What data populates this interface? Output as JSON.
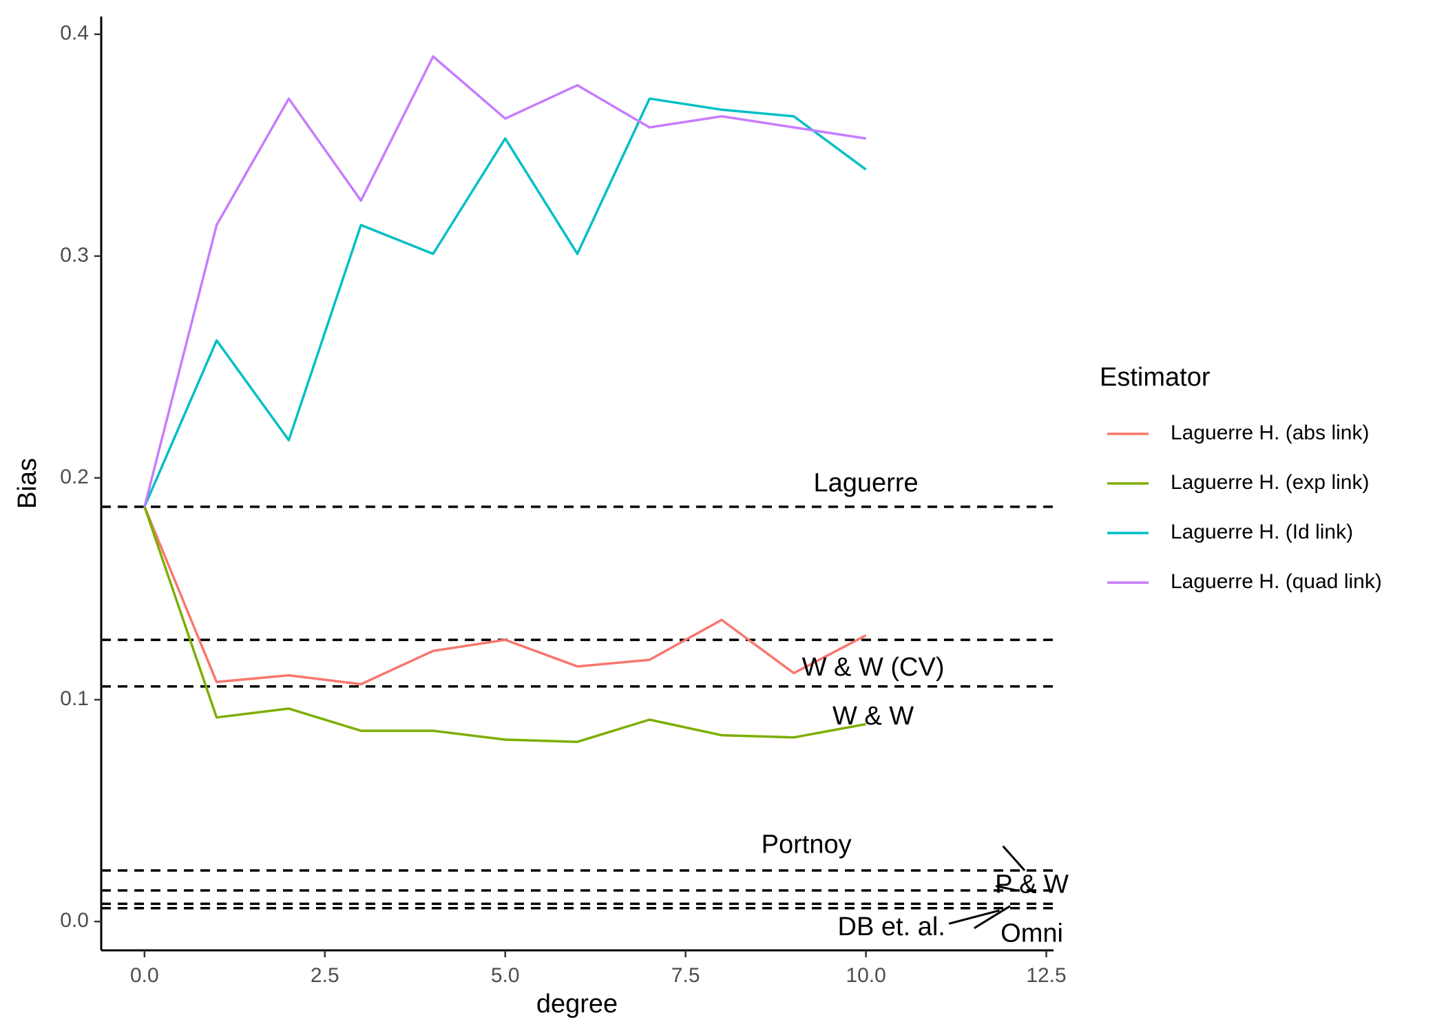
{
  "chart_data": {
    "type": "line",
    "xlabel": "degree",
    "ylabel": "Bias",
    "xlim": [
      -0.6,
      12.6
    ],
    "ylim": [
      -0.013,
      0.408
    ],
    "x_ticks": [
      0.0,
      2.5,
      5.0,
      7.5,
      10.0,
      12.5
    ],
    "x_tick_labels": [
      "0.0",
      "2.5",
      "5.0",
      "7.5",
      "10.0",
      "12.5"
    ],
    "y_ticks": [
      0.0,
      0.1,
      0.2,
      0.3,
      0.4
    ],
    "y_tick_labels": [
      "0.0",
      "0.1",
      "0.2",
      "0.3",
      "0.4"
    ],
    "grid": false,
    "legend": {
      "title": "Estimator",
      "placement": "right"
    },
    "x": [
      0,
      1,
      2,
      3,
      4,
      5,
      6,
      7,
      8,
      9,
      10
    ],
    "series": [
      {
        "name": "Laguerre H. (abs link)",
        "color": "#F8766D",
        "values": [
          0.187,
          0.108,
          0.111,
          0.107,
          0.122,
          0.127,
          0.115,
          0.118,
          0.136,
          0.112,
          0.129
        ]
      },
      {
        "name": "Laguerre H. (exp link)",
        "color": "#7CAE00",
        "values": [
          0.187,
          0.092,
          0.096,
          0.086,
          0.086,
          0.082,
          0.081,
          0.091,
          0.084,
          0.083,
          0.089
        ]
      },
      {
        "name": "Laguerre H. (Id link)",
        "color": "#00BFC4",
        "values": [
          0.187,
          0.262,
          0.217,
          0.314,
          0.301,
          0.353,
          0.301,
          0.371,
          0.366,
          0.363,
          0.339
        ]
      },
      {
        "name": "Laguerre H. (quad link)",
        "color": "#C77CFF",
        "values": [
          0.187,
          0.314,
          0.371,
          0.325,
          0.39,
          0.362,
          0.377,
          0.358,
          0.363,
          0.358,
          0.353
        ]
      }
    ],
    "reference_lines": [
      {
        "label": "Laguerre",
        "y": 0.187,
        "label_x": 10.0,
        "label_y": 0.197
      },
      {
        "label": "W & W (CV)",
        "y": 0.127,
        "label_x": 10.1,
        "label_y": 0.114
      },
      {
        "label": "W & W",
        "y": 0.106,
        "label_x": 10.1,
        "label_y": 0.092
      },
      {
        "label": "Portnoy",
        "y": 0.023,
        "label_x": 9.8,
        "label_y": 0.034,
        "leader_from": [
          11.9,
          0.034
        ],
        "leader_to": [
          12.2,
          0.023
        ]
      },
      {
        "label": "P & W",
        "y": 0.014,
        "label_x": 12.3,
        "label_y": 0.016,
        "leader_from": [
          11.8,
          0.016
        ],
        "leader_to": [
          12.1,
          0.014
        ]
      },
      {
        "label": "Omni",
        "y": 0.008,
        "label_x": 12.3,
        "label_y": -0.006,
        "leader_from": [
          11.5,
          -0.003
        ],
        "leader_to": [
          12.0,
          0.007
        ]
      },
      {
        "label": "DB et. al.",
        "y": 0.006,
        "label_x": 11.1,
        "label_y": -0.003,
        "leader_from": [
          11.15,
          -0.001
        ],
        "leader_to": [
          11.85,
          0.005
        ]
      }
    ]
  }
}
